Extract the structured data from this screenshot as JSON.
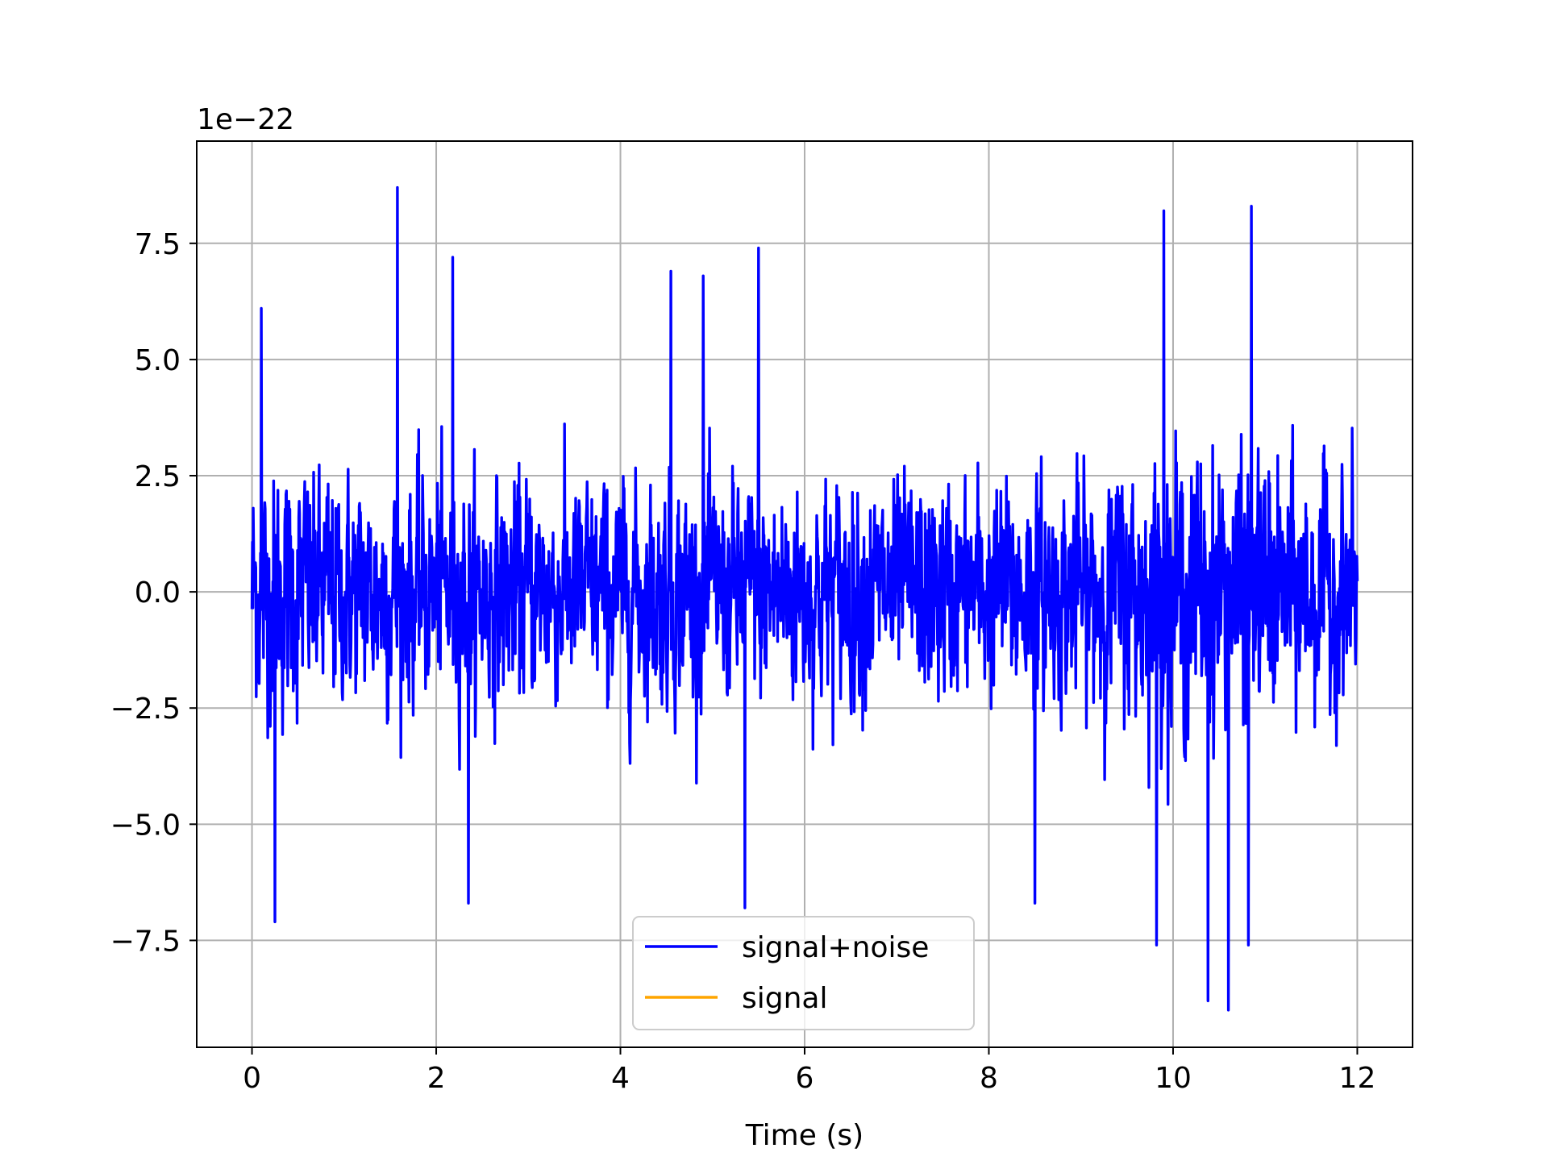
{
  "chart_data": {
    "type": "line",
    "xlabel": "Time (s)",
    "ylabel": "",
    "offset_label": "1e−22",
    "xlim": [
      -0.6,
      12.6
    ],
    "ylim": [
      -9.8,
      9.7
    ],
    "xticks": [
      0,
      2,
      4,
      6,
      8,
      10,
      12
    ],
    "xtick_labels": [
      "0",
      "2",
      "4",
      "6",
      "8",
      "10",
      "12"
    ],
    "yticks": [
      -7.5,
      -5.0,
      -2.5,
      0.0,
      2.5,
      5.0,
      7.5
    ],
    "ytick_labels": [
      "−7.5",
      "−5.0",
      "−2.5",
      "0.0",
      "2.5",
      "5.0",
      "7.5"
    ],
    "grid": true,
    "legend_position": "lower center",
    "series": [
      {
        "name": "signal+noise",
        "color": "#0000ff",
        "x_range": [
          0,
          12
        ],
        "approx_amplitude": 2.5,
        "notable_peaks": [
          {
            "x": 0.1,
            "y": 6.1
          },
          {
            "x": 0.25,
            "y": -7.1
          },
          {
            "x": 1.58,
            "y": 8.7
          },
          {
            "x": 2.18,
            "y": 7.2
          },
          {
            "x": 2.35,
            "y": -6.7
          },
          {
            "x": 4.55,
            "y": 6.9
          },
          {
            "x": 4.9,
            "y": 6.8
          },
          {
            "x": 5.35,
            "y": -6.8
          },
          {
            "x": 5.5,
            "y": 7.4
          },
          {
            "x": 8.5,
            "y": -6.7
          },
          {
            "x": 9.82,
            "y": -7.6
          },
          {
            "x": 9.9,
            "y": 8.2
          },
          {
            "x": 10.38,
            "y": -8.8
          },
          {
            "x": 10.6,
            "y": -9.0
          },
          {
            "x": 10.85,
            "y": 8.3
          },
          {
            "x": 10.82,
            "y": -7.6
          }
        ]
      },
      {
        "name": "signal",
        "color": "#ffa500",
        "x_range": [
          0,
          12
        ],
        "values_note": ""
      }
    ]
  }
}
